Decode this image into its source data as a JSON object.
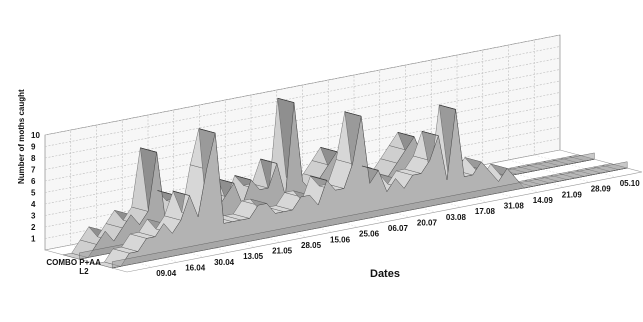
{
  "chart_data": {
    "type": "area",
    "subtype": "3d-ribbon",
    "xlabel": "Dates",
    "ylabel": "Number of moths caught",
    "ylim": [
      0,
      10
    ],
    "yticks": [
      "1",
      "2",
      "3",
      "4",
      "5",
      "6",
      "7",
      "8",
      "9",
      "10"
    ],
    "date_labels": [
      "09.04",
      "16.04",
      "30.04",
      "13.05",
      "21.05",
      "28.05",
      "15.06",
      "25.06",
      "06.07",
      "20.07",
      "03.08",
      "17.08",
      "31.08",
      "14.09",
      "21.09",
      "28.09",
      "05.10"
    ],
    "grid": true,
    "series": [
      {
        "name": "COMBO P+AA",
        "values": [
          0,
          0,
          1,
          2,
          1,
          2,
          3,
          2,
          3,
          8,
          2,
          4,
          3,
          3,
          2,
          3,
          2,
          3,
          4,
          2,
          4,
          3,
          3,
          5,
          2,
          10,
          3,
          2,
          3,
          4,
          5,
          3,
          4,
          2,
          3,
          2,
          2,
          3,
          4,
          5,
          3,
          3,
          3,
          2,
          2,
          2,
          1,
          0,
          0,
          0,
          0,
          0,
          0,
          0,
          0,
          0,
          0,
          0,
          0,
          0,
          0
        ]
      },
      {
        "name": "L2",
        "values": [
          0,
          0,
          1,
          1,
          2,
          2,
          3,
          2,
          3,
          5,
          3,
          7,
          10,
          2,
          2,
          2,
          2,
          3,
          3,
          2,
          2,
          2,
          3,
          3,
          2,
          4,
          3,
          3,
          5,
          9,
          3,
          4,
          2,
          3,
          2,
          3,
          3,
          4,
          6,
          2,
          8,
          2,
          2,
          3,
          2,
          1,
          2,
          1,
          0,
          0,
          0,
          0,
          0,
          0,
          0,
          0,
          0,
          0,
          0,
          0,
          0
        ]
      }
    ]
  }
}
